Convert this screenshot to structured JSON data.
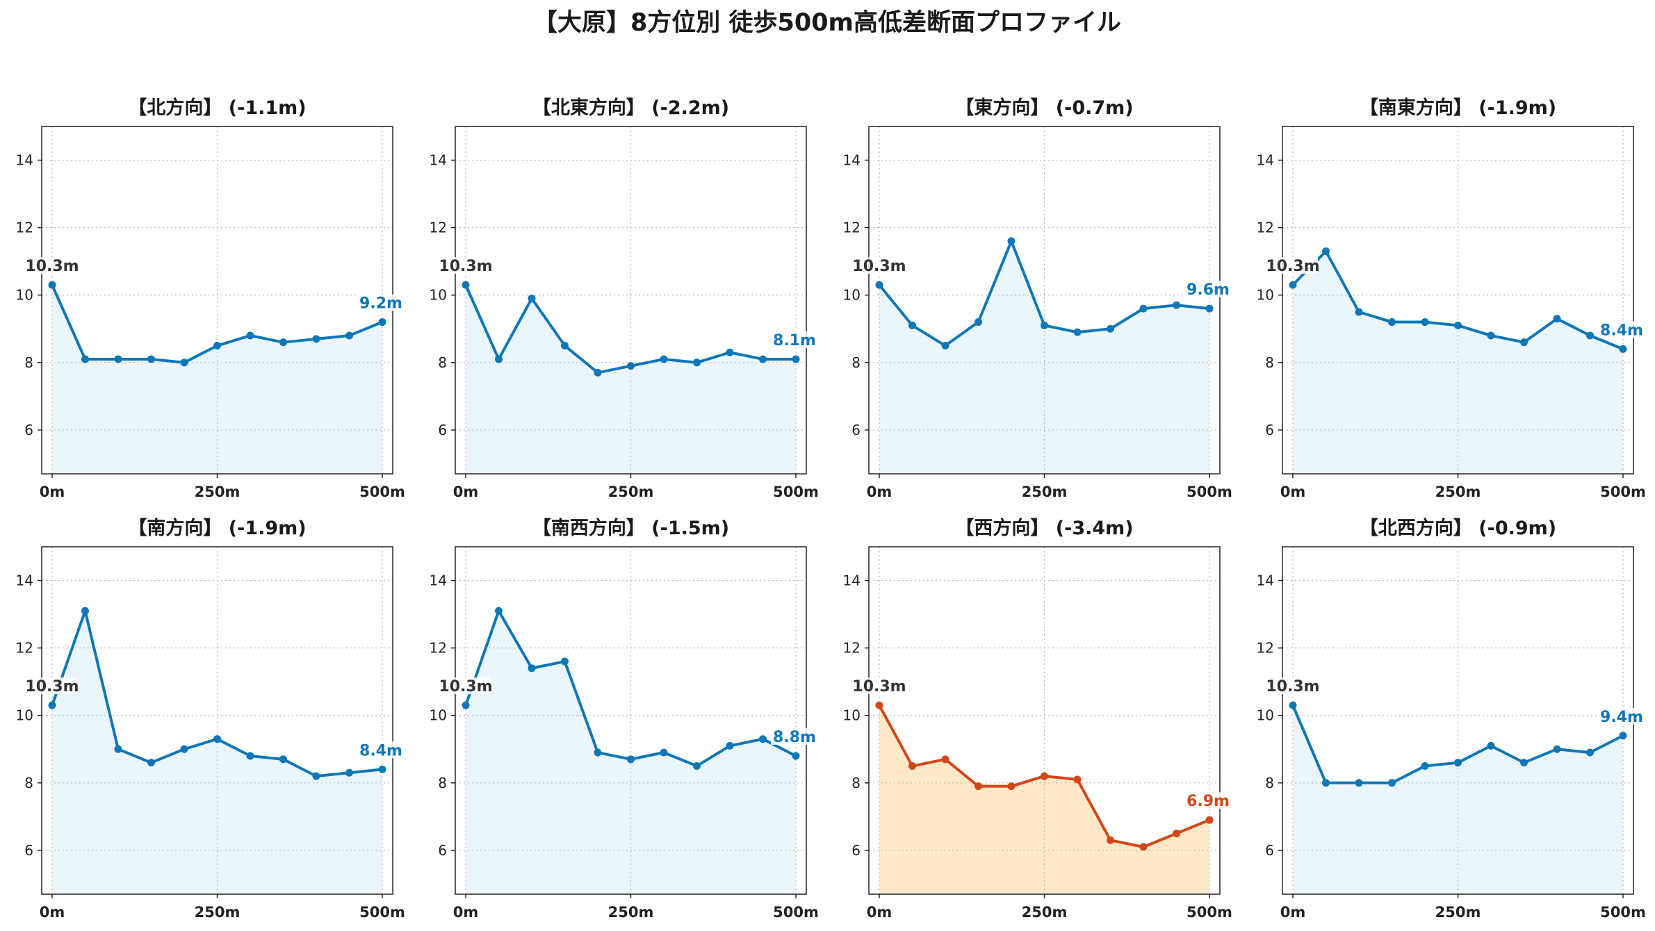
{
  "title": "【大原】8方位別 徒歩500m高低差断面プロファイル",
  "colors": {
    "normal_line": "#0f77b8",
    "normal_fill": "#eaf6fb",
    "worst_line": "#d4461a",
    "worst_fill": "#fde9c8",
    "start_label": "#333333"
  },
  "chart_data": [
    {
      "type": "line",
      "title": "【北方向】 (-1.1m)",
      "x": [
        0,
        50,
        100,
        150,
        200,
        250,
        300,
        350,
        400,
        450,
        500
      ],
      "values": [
        10.3,
        8.1,
        8.1,
        8.1,
        8.0,
        8.5,
        8.8,
        8.6,
        8.7,
        8.8,
        9.2
      ],
      "start_label": "10.3m",
      "end_label": "9.2m",
      "highlight": false,
      "ylim": [
        4.7,
        15.0
      ],
      "yticks": [
        "6",
        "8",
        "10",
        "12",
        "14"
      ],
      "xticks": [
        "0m",
        "250m",
        "500m"
      ],
      "grid": true
    },
    {
      "type": "line",
      "title": "【北東方向】 (-2.2m)",
      "x": [
        0,
        50,
        100,
        150,
        200,
        250,
        300,
        350,
        400,
        450,
        500
      ],
      "values": [
        10.3,
        8.1,
        9.9,
        8.5,
        7.7,
        7.9,
        8.1,
        8.0,
        8.3,
        8.1,
        8.1
      ],
      "start_label": "10.3m",
      "end_label": "8.1m",
      "highlight": false,
      "ylim": [
        4.7,
        15.0
      ],
      "yticks": [
        "6",
        "8",
        "10",
        "12",
        "14"
      ],
      "xticks": [
        "0m",
        "250m",
        "500m"
      ],
      "grid": true
    },
    {
      "type": "line",
      "title": "【東方向】 (-0.7m)",
      "x": [
        0,
        50,
        100,
        150,
        200,
        250,
        300,
        350,
        400,
        450,
        500
      ],
      "values": [
        10.3,
        9.1,
        8.5,
        9.2,
        11.6,
        9.1,
        8.9,
        9.0,
        9.6,
        9.7,
        9.6
      ],
      "start_label": "10.3m",
      "end_label": "9.6m",
      "highlight": false,
      "ylim": [
        4.7,
        15.0
      ],
      "yticks": [
        "6",
        "8",
        "10",
        "12",
        "14"
      ],
      "xticks": [
        "0m",
        "250m",
        "500m"
      ],
      "grid": true
    },
    {
      "type": "line",
      "title": "【南東方向】 (-1.9m)",
      "x": [
        0,
        50,
        100,
        150,
        200,
        250,
        300,
        350,
        400,
        450,
        500
      ],
      "values": [
        10.3,
        11.3,
        9.5,
        9.2,
        9.2,
        9.1,
        8.8,
        8.6,
        9.3,
        8.8,
        8.4
      ],
      "start_label": "10.3m",
      "end_label": "8.4m",
      "highlight": false,
      "ylim": [
        4.7,
        15.0
      ],
      "yticks": [
        "6",
        "8",
        "10",
        "12",
        "14"
      ],
      "xticks": [
        "0m",
        "250m",
        "500m"
      ],
      "grid": true
    },
    {
      "type": "line",
      "title": "【南方向】 (-1.9m)",
      "x": [
        0,
        50,
        100,
        150,
        200,
        250,
        300,
        350,
        400,
        450,
        500
      ],
      "values": [
        10.3,
        13.1,
        9.0,
        8.6,
        9.0,
        9.3,
        8.8,
        8.7,
        8.2,
        8.3,
        8.4
      ],
      "start_label": "10.3m",
      "end_label": "8.4m",
      "highlight": false,
      "ylim": [
        4.7,
        15.0
      ],
      "yticks": [
        "6",
        "8",
        "10",
        "12",
        "14"
      ],
      "xticks": [
        "0m",
        "250m",
        "500m"
      ],
      "grid": true
    },
    {
      "type": "line",
      "title": "【南西方向】 (-1.5m)",
      "x": [
        0,
        50,
        100,
        150,
        200,
        250,
        300,
        350,
        400,
        450,
        500
      ],
      "values": [
        10.3,
        13.1,
        11.4,
        11.6,
        8.9,
        8.7,
        8.9,
        8.5,
        9.1,
        9.3,
        8.8
      ],
      "start_label": "10.3m",
      "end_label": "8.8m",
      "highlight": false,
      "ylim": [
        4.7,
        15.0
      ],
      "yticks": [
        "6",
        "8",
        "10",
        "12",
        "14"
      ],
      "xticks": [
        "0m",
        "250m",
        "500m"
      ],
      "grid": true
    },
    {
      "type": "line",
      "title": "【西方向】 (-3.4m)",
      "x": [
        0,
        50,
        100,
        150,
        200,
        250,
        300,
        350,
        400,
        450,
        500
      ],
      "values": [
        10.3,
        8.5,
        8.7,
        7.9,
        7.9,
        8.2,
        8.1,
        6.3,
        6.1,
        6.5,
        6.9
      ],
      "start_label": "10.3m",
      "end_label": "6.9m",
      "highlight": true,
      "ylim": [
        4.7,
        15.0
      ],
      "yticks": [
        "6",
        "8",
        "10",
        "12",
        "14"
      ],
      "xticks": [
        "0m",
        "250m",
        "500m"
      ],
      "grid": true
    },
    {
      "type": "line",
      "title": "【北西方向】 (-0.9m)",
      "x": [
        0,
        50,
        100,
        150,
        200,
        250,
        300,
        350,
        400,
        450,
        500
      ],
      "values": [
        10.3,
        8.0,
        8.0,
        8.0,
        8.5,
        8.6,
        9.1,
        8.6,
        9.0,
        8.9,
        9.4
      ],
      "start_label": "10.3m",
      "end_label": "9.4m",
      "highlight": false,
      "ylim": [
        4.7,
        15.0
      ],
      "yticks": [
        "6",
        "8",
        "10",
        "12",
        "14"
      ],
      "xticks": [
        "0m",
        "250m",
        "500m"
      ],
      "grid": true
    }
  ]
}
